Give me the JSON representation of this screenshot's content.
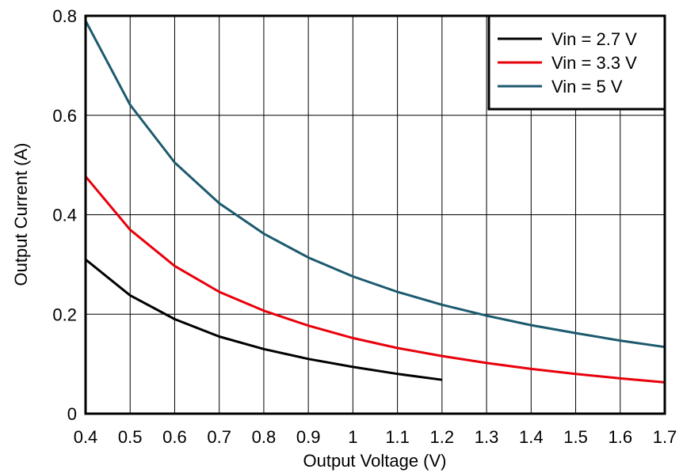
{
  "chart_data": {
    "type": "line",
    "title": "",
    "xlabel": "Output Voltage (V)",
    "ylabel": "Output Current (A)",
    "xlim": [
      0.4,
      1.7
    ],
    "ylim": [
      0,
      0.8
    ],
    "xticks": [
      0.4,
      0.5,
      0.6,
      0.7,
      0.8,
      0.9,
      1.0,
      1.1,
      1.2,
      1.3,
      1.4,
      1.5,
      1.6,
      1.7
    ],
    "xtick_labels": [
      "0.4",
      "0.5",
      "0.6",
      "0.7",
      "0.8",
      "0.9",
      "1",
      "1.1",
      "1.2",
      "1.3",
      "1.4",
      "1.5",
      "1.6",
      "1.7"
    ],
    "yticks": [
      0,
      0.2,
      0.4,
      0.6,
      0.8
    ],
    "ytick_labels": [
      "0",
      "0.2",
      "0.4",
      "0.6",
      "0.8"
    ],
    "grid": true,
    "legend_position": "top-right",
    "series": [
      {
        "name": "Vin = 2.7 V",
        "color": "#000000",
        "x": [
          0.4,
          0.5,
          0.6,
          0.7,
          0.8,
          0.9,
          1.0,
          1.1,
          1.2
        ],
        "y": [
          0.31,
          0.238,
          0.19,
          0.155,
          0.13,
          0.11,
          0.094,
          0.08,
          0.068
        ]
      },
      {
        "name": "Vin = 3.3 V",
        "color": "#e8000b",
        "x": [
          0.4,
          0.5,
          0.6,
          0.7,
          0.8,
          0.9,
          1.0,
          1.1,
          1.2,
          1.3,
          1.4,
          1.5,
          1.6,
          1.7
        ],
        "y": [
          0.477,
          0.37,
          0.297,
          0.245,
          0.207,
          0.177,
          0.152,
          0.132,
          0.116,
          0.102,
          0.09,
          0.08,
          0.071,
          0.063
        ]
      },
      {
        "name": "Vin = 5 V",
        "color": "#1c5a6e",
        "x": [
          0.4,
          0.5,
          0.6,
          0.7,
          0.8,
          0.9,
          1.0,
          1.1,
          1.2,
          1.3,
          1.4,
          1.5,
          1.6,
          1.7
        ],
        "y": [
          0.79,
          0.621,
          0.505,
          0.423,
          0.362,
          0.314,
          0.276,
          0.245,
          0.219,
          0.197,
          0.178,
          0.162,
          0.147,
          0.134
        ]
      }
    ]
  }
}
